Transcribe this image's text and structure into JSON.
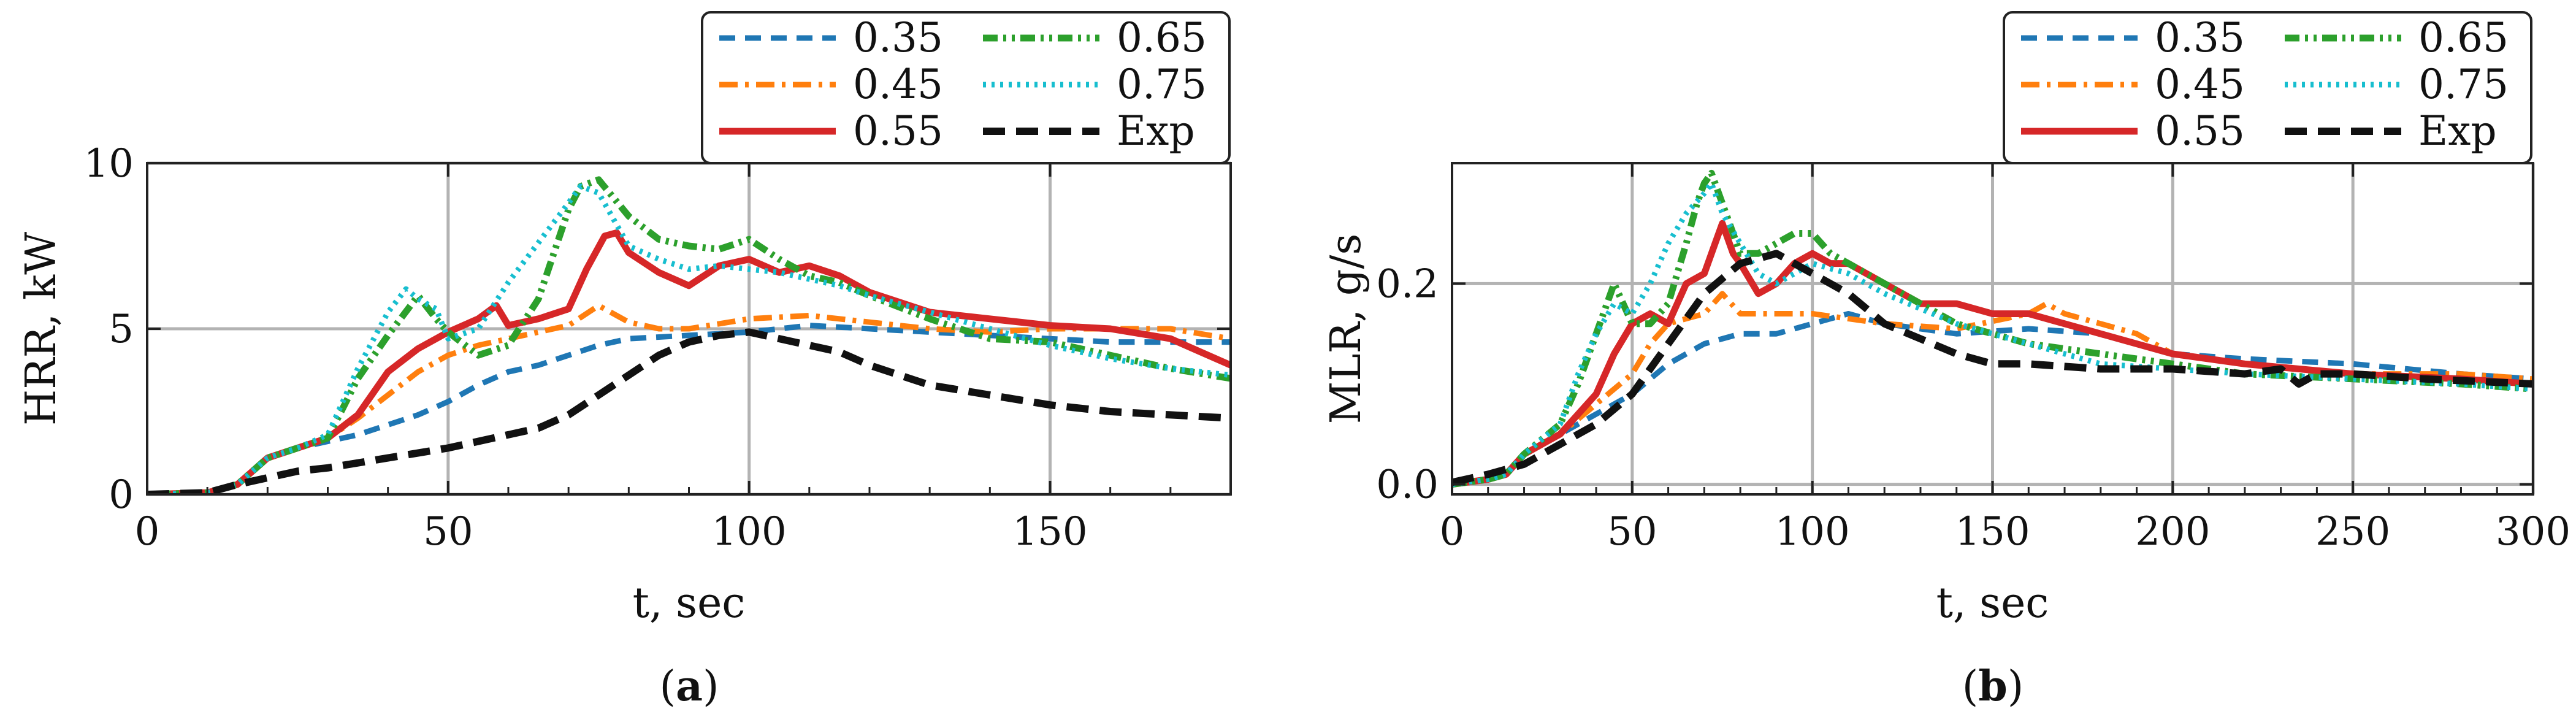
{
  "colors": {
    "0.35": "#1f77b4",
    "0.45": "#ff7f0e",
    "0.55": "#d62728",
    "0.65": "#2ca02c",
    "0.75": "#17becf",
    "Exp": "#111111",
    "grid": "#b3b3b3"
  },
  "chart_data": [
    {
      "type": "line",
      "panel": "a",
      "caption_open": "(",
      "caption_letter": "a",
      "caption_close": ")",
      "xlabel": "t, sec",
      "ylabel": "HRR, kW",
      "xlim": [
        0,
        180
      ],
      "ylim": [
        0,
        10
      ],
      "xticks": [
        0,
        50,
        100,
        150
      ],
      "yticks": [
        0,
        5,
        10
      ],
      "grid": true,
      "legend_position": "top-right",
      "series": [
        {
          "name": "0.35",
          "x": [
            0,
            10,
            15,
            20,
            25,
            30,
            35,
            40,
            45,
            50,
            55,
            60,
            65,
            70,
            75,
            80,
            90,
            100,
            110,
            120,
            130,
            140,
            150,
            160,
            170,
            180
          ],
          "values": [
            0,
            0.05,
            0.3,
            1.1,
            1.4,
            1.6,
            1.8,
            2.1,
            2.4,
            2.8,
            3.3,
            3.7,
            3.9,
            4.2,
            4.5,
            4.7,
            4.8,
            4.9,
            5.1,
            5.0,
            4.9,
            4.8,
            4.7,
            4.6,
            4.6,
            4.6
          ]
        },
        {
          "name": "0.45",
          "x": [
            0,
            10,
            15,
            20,
            25,
            30,
            35,
            40,
            45,
            50,
            55,
            60,
            65,
            70,
            75,
            80,
            85,
            90,
            100,
            110,
            120,
            130,
            140,
            150,
            160,
            170,
            180
          ],
          "values": [
            0,
            0.05,
            0.3,
            1.1,
            1.4,
            1.7,
            2.3,
            3.0,
            3.7,
            4.2,
            4.5,
            4.7,
            4.9,
            5.1,
            5.7,
            5.2,
            5.0,
            5.0,
            5.3,
            5.4,
            5.2,
            5.0,
            4.9,
            5.0,
            5.0,
            5.0,
            4.7
          ]
        },
        {
          "name": "0.55",
          "x": [
            0,
            10,
            15,
            20,
            25,
            30,
            35,
            40,
            45,
            50,
            55,
            58,
            60,
            65,
            70,
            73,
            76,
            78,
            80,
            85,
            90,
            95,
            100,
            105,
            110,
            115,
            120,
            130,
            140,
            150,
            160,
            170,
            175,
            180
          ],
          "values": [
            0,
            0.05,
            0.3,
            1.1,
            1.4,
            1.7,
            2.4,
            3.7,
            4.4,
            4.9,
            5.3,
            5.7,
            5.1,
            5.3,
            5.6,
            6.8,
            7.8,
            7.9,
            7.3,
            6.7,
            6.3,
            6.9,
            7.1,
            6.7,
            6.9,
            6.6,
            6.1,
            5.5,
            5.3,
            5.1,
            5.0,
            4.7,
            4.3,
            3.9
          ]
        },
        {
          "name": "0.65",
          "x": [
            0,
            10,
            15,
            20,
            25,
            30,
            35,
            40,
            45,
            48,
            50,
            55,
            60,
            65,
            70,
            72,
            75,
            80,
            85,
            90,
            95,
            100,
            105,
            110,
            115,
            120,
            130,
            140,
            150,
            160,
            170,
            180
          ],
          "values": [
            0,
            0.05,
            0.3,
            1.1,
            1.4,
            1.7,
            3.5,
            4.8,
            6.0,
            5.3,
            4.9,
            4.2,
            4.5,
            5.9,
            8.6,
            9.3,
            9.5,
            8.4,
            7.7,
            7.5,
            7.4,
            7.7,
            7.1,
            6.6,
            6.4,
            6.0,
            5.3,
            4.7,
            4.6,
            4.2,
            3.8,
            3.5
          ]
        },
        {
          "name": "0.75",
          "x": [
            0,
            10,
            15,
            20,
            25,
            30,
            35,
            40,
            43,
            45,
            48,
            50,
            55,
            60,
            65,
            70,
            72,
            75,
            80,
            85,
            90,
            95,
            100,
            105,
            110,
            115,
            120,
            130,
            140,
            150,
            160,
            170,
            180
          ],
          "values": [
            0,
            0.05,
            0.3,
            1.1,
            1.4,
            1.8,
            3.8,
            5.5,
            6.2,
            5.9,
            5.6,
            4.7,
            5.0,
            6.4,
            7.6,
            8.8,
            9.3,
            9.1,
            7.5,
            7.1,
            6.8,
            6.9,
            6.8,
            6.7,
            6.5,
            6.3,
            6.0,
            5.5,
            5.0,
            4.5,
            4.1,
            3.8,
            3.6
          ]
        },
        {
          "name": "Exp",
          "x": [
            0,
            10,
            15,
            20,
            25,
            30,
            40,
            50,
            60,
            65,
            70,
            75,
            80,
            85,
            90,
            95,
            100,
            105,
            110,
            115,
            120,
            125,
            130,
            140,
            150,
            160,
            170,
            180
          ],
          "values": [
            0,
            0.05,
            0.3,
            0.5,
            0.7,
            0.8,
            1.1,
            1.4,
            1.8,
            2.0,
            2.4,
            3.0,
            3.6,
            4.2,
            4.6,
            4.8,
            4.9,
            4.7,
            4.5,
            4.3,
            3.9,
            3.6,
            3.3,
            3.0,
            2.7,
            2.5,
            2.4,
            2.3
          ]
        }
      ]
    },
    {
      "type": "line",
      "panel": "b",
      "caption_open": "(",
      "caption_letter": "b",
      "caption_close": ")",
      "xlabel": "t, sec",
      "ylabel": "MLR, g/s",
      "xlim": [
        0,
        300
      ],
      "ylim": [
        -0.01,
        0.32
      ],
      "xticks": [
        0,
        50,
        100,
        150,
        200,
        250,
        300
      ],
      "yticks": [
        0.0,
        0.2
      ],
      "ytick_labels": [
        "0.0",
        "0.2"
      ],
      "grid": true,
      "legend_position": "top-right",
      "series": [
        {
          "name": "0.35",
          "x": [
            0,
            10,
            15,
            20,
            30,
            40,
            50,
            60,
            70,
            80,
            90,
            100,
            110,
            120,
            140,
            160,
            180,
            200,
            220,
            250,
            280,
            300
          ],
          "values": [
            0,
            0.005,
            0.01,
            0.03,
            0.05,
            0.07,
            0.09,
            0.12,
            0.14,
            0.15,
            0.15,
            0.16,
            0.17,
            0.16,
            0.15,
            0.155,
            0.15,
            0.13,
            0.125,
            0.12,
            0.11,
            0.105
          ]
        },
        {
          "name": "0.45",
          "x": [
            0,
            10,
            15,
            20,
            30,
            40,
            50,
            55,
            60,
            65,
            70,
            75,
            80,
            90,
            100,
            110,
            120,
            140,
            160,
            165,
            170,
            180,
            190,
            200,
            220,
            250,
            280,
            300
          ],
          "values": [
            0,
            0.005,
            0.01,
            0.03,
            0.05,
            0.08,
            0.11,
            0.14,
            0.16,
            0.165,
            0.17,
            0.19,
            0.17,
            0.17,
            0.17,
            0.165,
            0.16,
            0.155,
            0.17,
            0.18,
            0.17,
            0.16,
            0.15,
            0.13,
            0.12,
            0.11,
            0.11,
            0.105
          ]
        },
        {
          "name": "0.55",
          "x": [
            0,
            10,
            15,
            20,
            30,
            40,
            45,
            50,
            55,
            60,
            65,
            70,
            73,
            75,
            78,
            80,
            85,
            90,
            95,
            100,
            105,
            110,
            120,
            130,
            140,
            150,
            160,
            170,
            180,
            200,
            220,
            250,
            280,
            300
          ],
          "values": [
            0,
            0.005,
            0.01,
            0.03,
            0.05,
            0.09,
            0.13,
            0.16,
            0.17,
            0.16,
            0.2,
            0.21,
            0.24,
            0.26,
            0.23,
            0.22,
            0.19,
            0.2,
            0.22,
            0.23,
            0.22,
            0.22,
            0.2,
            0.18,
            0.18,
            0.17,
            0.17,
            0.16,
            0.15,
            0.13,
            0.12,
            0.11,
            0.105,
            0.1
          ]
        },
        {
          "name": "0.65",
          "x": [
            0,
            10,
            15,
            20,
            30,
            35,
            40,
            45,
            50,
            55,
            60,
            65,
            68,
            70,
            72,
            75,
            80,
            85,
            90,
            95,
            100,
            105,
            110,
            120,
            140,
            160,
            180,
            200,
            220,
            250,
            280,
            300
          ],
          "values": [
            0,
            0.005,
            0.01,
            0.03,
            0.06,
            0.1,
            0.15,
            0.2,
            0.16,
            0.16,
            0.18,
            0.24,
            0.28,
            0.3,
            0.31,
            0.28,
            0.23,
            0.23,
            0.24,
            0.25,
            0.25,
            0.23,
            0.22,
            0.2,
            0.16,
            0.14,
            0.13,
            0.12,
            0.11,
            0.105,
            0.1,
            0.095
          ]
        },
        {
          "name": "0.75",
          "x": [
            0,
            10,
            15,
            20,
            30,
            35,
            40,
            45,
            50,
            55,
            60,
            65,
            70,
            72,
            75,
            80,
            85,
            90,
            95,
            100,
            110,
            120,
            140,
            160,
            180,
            200,
            220,
            250,
            280,
            300
          ],
          "values": [
            0,
            0.005,
            0.01,
            0.03,
            0.06,
            0.11,
            0.15,
            0.18,
            0.17,
            0.2,
            0.24,
            0.27,
            0.29,
            0.3,
            0.27,
            0.24,
            0.21,
            0.2,
            0.21,
            0.22,
            0.21,
            0.19,
            0.16,
            0.14,
            0.12,
            0.115,
            0.11,
            0.105,
            0.1,
            0.095
          ]
        },
        {
          "name": "Exp",
          "x": [
            0,
            10,
            20,
            30,
            40,
            50,
            60,
            70,
            80,
            90,
            100,
            110,
            120,
            140,
            150,
            160,
            180,
            200,
            220,
            230,
            235,
            240,
            250,
            270,
            300
          ],
          "values": [
            0.002,
            0.01,
            0.02,
            0.04,
            0.06,
            0.09,
            0.14,
            0.19,
            0.22,
            0.23,
            0.21,
            0.19,
            0.16,
            0.13,
            0.12,
            0.12,
            0.115,
            0.115,
            0.11,
            0.115,
            0.1,
            0.11,
            0.11,
            0.105,
            0.1
          ]
        }
      ]
    }
  ]
}
